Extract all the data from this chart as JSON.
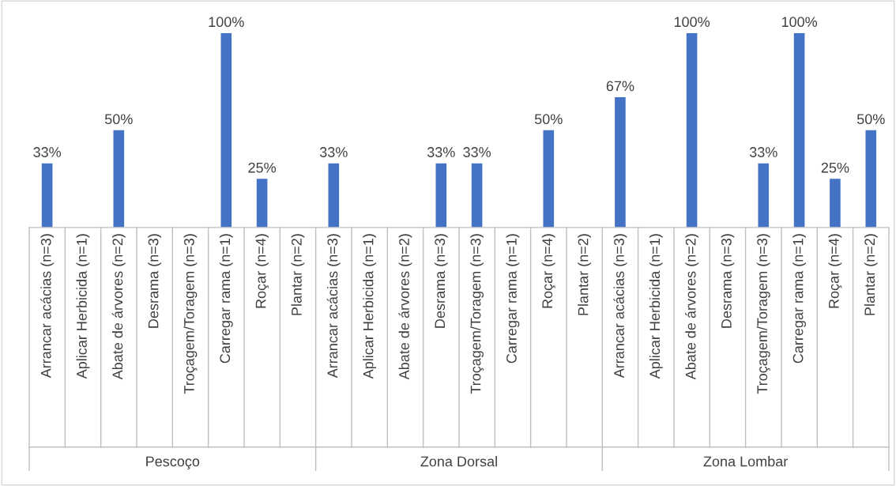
{
  "chart_data": {
    "type": "bar",
    "categories": [
      "Arrancar acácias (n=3)",
      "Aplicar Herbicida (n=1)",
      "Abate de árvores (n=2)",
      "Desrama (n=3)",
      "Troçagem/Toragem (n=3)",
      "Carregar rama (n=1)",
      "Roçar (n=4)",
      "Plantar (n=2)",
      "Arrancar acácias (n=3)",
      "Aplicar Herbicida (n=1)",
      "Abate de árvores (n=2)",
      "Desrama (n=3)",
      "Troçagem/Toragem (n=3)",
      "Carregar rama (n=1)",
      "Roçar (n=4)",
      "Plantar (n=2)",
      "Arrancar acácias (n=3)",
      "Aplicar Herbicida (n=1)",
      "Abate de árvores (n=2)",
      "Desrama (n=3)",
      "Troçagem/Toragem (n=3)",
      "Carregar rama (n=1)",
      "Roçar (n=4)",
      "Plantar (n=2)"
    ],
    "values": [
      33,
      null,
      50,
      null,
      null,
      100,
      25,
      null,
      33,
      null,
      null,
      33,
      33,
      null,
      50,
      null,
      67,
      null,
      100,
      null,
      33,
      100,
      25,
      50
    ],
    "value_labels": [
      "33%",
      null,
      "50%",
      null,
      null,
      "100%",
      "25%",
      null,
      "33%",
      null,
      null,
      "33%",
      "33%",
      null,
      "50%",
      null,
      "67%",
      null,
      "100%",
      null,
      "33%",
      "100%",
      "25%",
      "50%"
    ],
    "color": "#4472c4",
    "ylim": [
      0,
      100
    ],
    "tick_labels": "x",
    "annotations": [
      "Pescoço",
      "Zona Dorsal",
      "Zona Lombar"
    ]
  }
}
